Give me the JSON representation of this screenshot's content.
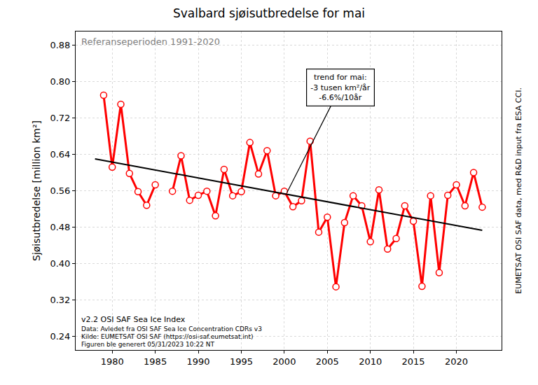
{
  "chart_data": {
    "type": "line",
    "title": "Svalbard sjøisutbredelse for mai",
    "y_label": "Sjøisutbredelse [million km²]",
    "x": [
      1979,
      1980,
      1981,
      1982,
      1983,
      1984,
      1985,
      1986,
      1987,
      1988,
      1989,
      1990,
      1991,
      1992,
      1993,
      1994,
      1995,
      1996,
      1997,
      1998,
      1999,
      2000,
      2001,
      2002,
      2003,
      2004,
      2005,
      2006,
      2007,
      2008,
      2009,
      2010,
      2011,
      2012,
      2013,
      2014,
      2015,
      2016,
      2017,
      2018,
      2019,
      2020,
      2021,
      2022,
      2023
    ],
    "series": [
      {
        "color": "#ff0000",
        "marker": "circle",
        "line_style": "solid",
        "values": [
          0.77,
          0.612,
          0.75,
          0.598,
          0.558,
          0.528,
          0.573,
          null,
          0.559,
          0.637,
          0.539,
          0.55,
          0.559,
          0.505,
          0.607,
          0.549,
          0.558,
          0.666,
          0.597,
          0.648,
          0.549,
          0.559,
          0.525,
          0.538,
          0.669,
          0.469,
          0.502,
          0.349,
          0.49,
          0.549,
          0.527,
          0.448,
          0.562,
          0.432,
          0.455,
          0.527,
          0.493,
          0.35,
          0.549,
          0.38,
          0.55,
          0.573,
          0.527,
          0.6,
          0.524
        ]
      },
      {
        "color": "#000000",
        "marker": "none",
        "line_style": "solid",
        "x": [
          1978,
          2023
        ],
        "values": [
          0.63,
          0.473
        ]
      }
    ],
    "annotations": [
      "trend for mai:\n-3 tusen km²/år\n-6.6%/10år",
      "Referanseperioden 1991-2020",
      "v2.2 OSI SAF Sea Ice Index",
      "Data: Avledet fra OSI SAF Sea Ice Concentration CDRs v3",
      "Kilde: EUMETSAT OSI SAF (https://osi-saf.eumetsat.int)",
      "Figuren ble generert 05/31/2023 10:22 NT",
      "EUMETSAT OSI SAF data, med R&D input fra ESA CCI."
    ],
    "xlim": [
      1975.75,
      2025.25
    ],
    "xticks": [
      1980,
      1985,
      1990,
      1995,
      2000,
      2005,
      2010,
      2015,
      2020
    ],
    "ylim": [
      0.21,
      0.91
    ],
    "yticks": [
      {
        "value": 0.24,
        "label": "0.24"
      },
      {
        "value": 0.32,
        "label": "0.32"
      },
      {
        "value": 0.4,
        "label": "0.40"
      },
      {
        "value": 0.48,
        "label": "0.48"
      },
      {
        "value": 0.56,
        "label": "0.56"
      },
      {
        "value": 0.64,
        "label": "0.64"
      },
      {
        "value": 0.72,
        "label": "0.72"
      },
      {
        "value": 0.8,
        "label": "0.80"
      },
      {
        "value": 0.88,
        "label": "0.88"
      }
    ],
    "grid": true
  }
}
